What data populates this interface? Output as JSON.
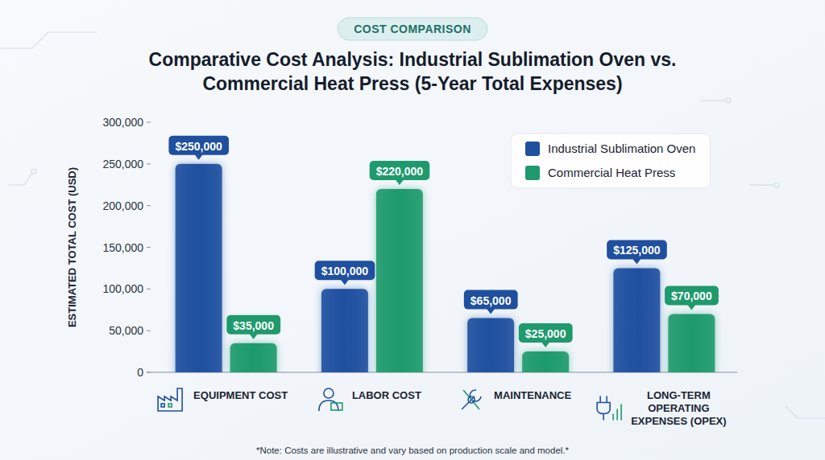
{
  "chart_data": {
    "type": "bar",
    "subtitle": "COST COMPARISON",
    "title": "Comparative Cost Analysis: Industrial Sublimation Oven vs. Commercial Heat Press (5-Year Total Expenses)",
    "y_label": "ESTIMATED TOTAL COST (USD)",
    "categories": [
      "EQUIPMENT COST",
      "LABOR COST",
      "MAINTENANCE",
      "LONG-TERM OPERATING EXPENSES (OPEX)"
    ],
    "series": [
      {
        "name": "Industrial Sublimation Oven",
        "color": "#1f4f9f",
        "values": [
          250000,
          100000,
          65000,
          125000
        ],
        "value_labels": [
          "$250,000",
          "$100,000",
          "$65,000",
          "$125,000"
        ]
      },
      {
        "name": "Commercial Heat Press",
        "color": "#1e9a6c",
        "values": [
          35000,
          220000,
          25000,
          70000
        ],
        "value_labels": [
          "$35,000",
          "$220,000",
          "$25,000",
          "$70,000"
        ]
      }
    ],
    "ylim": [
      0,
      300000
    ],
    "yticks": [
      0,
      {
        "value": 50000,
        "label": "50,000"
      },
      {
        "value": 100000,
        "label": "100,000"
      },
      {
        "value": 150000,
        "label": "150,000"
      },
      {
        "value": 200000,
        "label": "200,000"
      },
      {
        "value": 250000,
        "label": "250,000"
      },
      {
        "value": 300000,
        "label": "300,000"
      }
    ],
    "grid": false,
    "legend": "upper right",
    "data_labels": true,
    "annotations": [
      "*Note: Costs are illustrative and vary based on production scale and model.*"
    ]
  }
}
